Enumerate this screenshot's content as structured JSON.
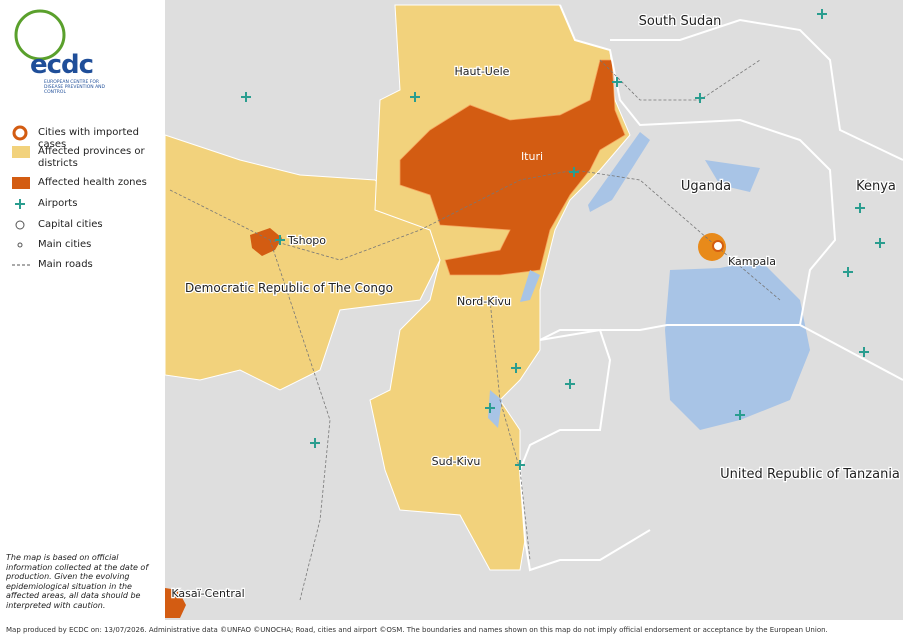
{
  "logo": {
    "name": "ecdc",
    "subtitle": "EUROPEAN CENTRE FOR DISEASE PREVENTION AND CONTROL"
  },
  "legend": [
    "Cities with imported cases",
    "Affected provinces or districts",
    "Affected health zones",
    "Airports",
    "Capital cities",
    "Main cities",
    "Main roads"
  ],
  "labels": [
    "South Sudan",
    "Haut-Uele",
    "Ituri",
    "Uganda",
    "Kenya",
    "Tshopo",
    "Kampala",
    "Democratic Republic of The Congo",
    "Nord-Kivu",
    "Sud-Kivu",
    "United Republic of Tanzania",
    "Kasaï-Central"
  ],
  "note": "The map is based on official information collected at the date of production. Given the evolving epidemiological situation in the affected areas, all data should be interpreted with caution.",
  "footer": "Map produced by ECDC on: 13/07/2026. Administrative data ©UNFAO ©UNOCHA; Road, cities and airport ©OSM. The boundaries and names shown on this map do not imply official endorsement or acceptance by the European Union."
}
